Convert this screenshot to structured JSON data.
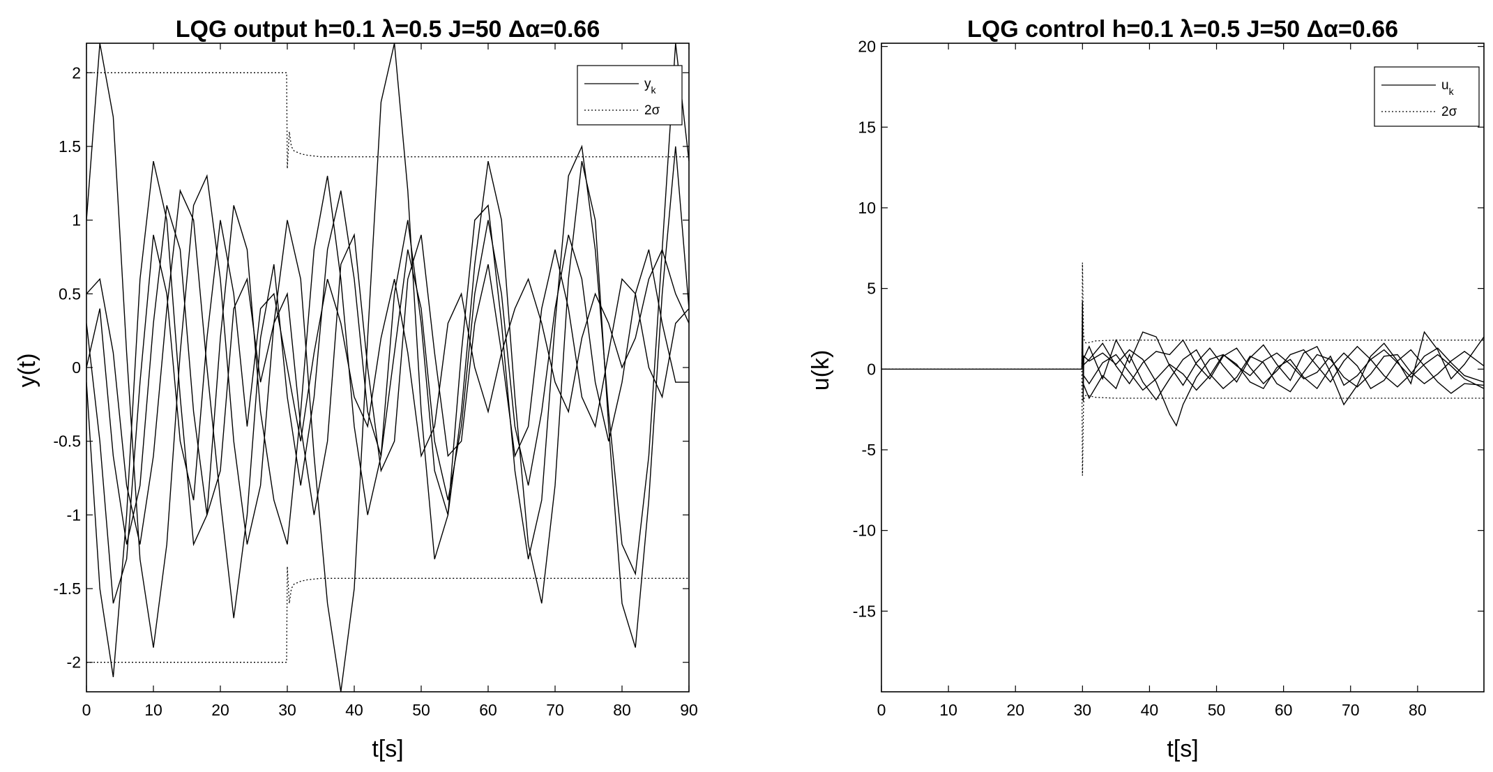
{
  "chart_data": [
    {
      "type": "line",
      "title": "LQG   output h=0.1   λ=0.5   J=50   Δα=0.66",
      "xlabel": "t[s]",
      "ylabel": "y(t)",
      "xlim": [
        0,
        90
      ],
      "ylim": [
        -2.2,
        2.2
      ],
      "xticks": [
        "0",
        "10",
        "20",
        "30",
        "40",
        "50",
        "60",
        "70",
        "80",
        "90"
      ],
      "yticks": [
        "2",
        "1.5",
        "1",
        "0.5",
        "0",
        "-0.5",
        "-1",
        "-1.5",
        "-2"
      ],
      "grid": false,
      "legend_position": "top-right",
      "legend": [
        {
          "label": "y",
          "sub": "k",
          "style": "solid"
        },
        {
          "label": "2σ",
          "sub": "",
          "style": "dotted"
        }
      ],
      "series": [
        {
          "style": "solid",
          "x": [
            0,
            2,
            4,
            6,
            8,
            10,
            12,
            14,
            16,
            18,
            20,
            22,
            24,
            26,
            28,
            30,
            32,
            34,
            36,
            38,
            40,
            42,
            44,
            46,
            48,
            50,
            52,
            54,
            56,
            58,
            60,
            62,
            64,
            66,
            68,
            70,
            72,
            74,
            76,
            78,
            80,
            82,
            84,
            86,
            88,
            90
          ],
          "y": [
            1.0,
            2.2,
            1.7,
            0.1,
            -1.3,
            -1.9,
            -1.2,
            0.1,
            1.1,
            1.3,
            0.6,
            -0.5,
            -1.2,
            -0.8,
            0.3,
            1.0,
            0.6,
            -0.6,
            -1.6,
            -2.2,
            -1.5,
            0.2,
            1.8,
            2.2,
            1.2,
            -0.3,
            -1.3,
            -1.0,
            0.1,
            1.0,
            1.1,
            0.3,
            -0.7,
            -1.3,
            -0.9,
            0.3,
            1.3,
            1.5,
            0.8,
            -0.3,
            -1.2,
            -1.4,
            -0.6,
            0.8,
            2.2,
            1.4
          ]
        },
        {
          "style": "solid",
          "x": [
            0,
            2,
            4,
            6,
            8,
            10,
            12,
            14,
            16,
            18,
            20,
            22,
            24,
            26,
            28,
            30,
            32,
            34,
            36,
            38,
            40,
            42,
            44,
            46,
            48,
            50,
            52,
            54,
            56,
            58,
            60,
            62,
            64,
            66,
            68,
            70,
            72,
            74,
            76,
            78,
            80,
            82,
            84,
            86,
            88,
            90
          ],
          "y": [
            -0.1,
            -1.5,
            -2.1,
            -1.0,
            0.6,
            1.4,
            1.0,
            -0.2,
            -1.2,
            -1.0,
            0.2,
            1.1,
            0.8,
            -0.3,
            -0.9,
            -1.2,
            -0.3,
            0.8,
            1.3,
            0.6,
            -0.4,
            -1.0,
            -0.6,
            0.5,
            1.0,
            0.3,
            -0.7,
            -1.0,
            -0.3,
            0.7,
            1.4,
            1.0,
            -0.2,
            -1.2,
            -1.6,
            -0.8,
            0.6,
            1.4,
            1.0,
            -0.4,
            -1.6,
            -1.9,
            -0.9,
            0.5,
            1.5,
            0.4
          ]
        },
        {
          "style": "solid",
          "x": [
            0,
            2,
            4,
            6,
            8,
            10,
            12,
            14,
            16,
            18,
            20,
            22,
            24,
            26,
            28,
            30,
            32,
            34,
            36,
            38,
            40,
            42,
            44,
            46,
            48,
            50,
            52,
            54,
            56,
            58,
            60,
            62,
            64,
            66,
            68,
            70,
            72,
            74,
            76,
            78,
            80,
            82,
            84,
            86,
            88,
            90
          ],
          "y": [
            0.5,
            0.6,
            0.1,
            -0.8,
            -1.2,
            -0.6,
            0.4,
            1.2,
            1.0,
            0.0,
            -0.9,
            -1.7,
            -1.0,
            0.2,
            0.7,
            -0.2,
            -0.8,
            -0.2,
            0.8,
            1.2,
            0.6,
            -0.3,
            -0.6,
            0.1,
            0.8,
            0.4,
            -0.5,
            -0.9,
            -0.4,
            0.5,
            1.0,
            0.5,
            -0.4,
            -0.8,
            -0.3,
            0.4,
            0.9,
            0.6,
            -0.1,
            -0.5,
            -0.1,
            0.5,
            0.8,
            0.3,
            -0.1,
            -0.1
          ]
        },
        {
          "style": "solid",
          "x": [
            0,
            2,
            4,
            6,
            8,
            10,
            12,
            14,
            16,
            18,
            20,
            22,
            24,
            26,
            28,
            30,
            32,
            34,
            36,
            38,
            40,
            42,
            44,
            46,
            48,
            50,
            52,
            54,
            56,
            58,
            60,
            62,
            64,
            66,
            68,
            70,
            72,
            74,
            76,
            78,
            80,
            82,
            84,
            86,
            88,
            90
          ],
          "y": [
            0.0,
            0.4,
            -0.6,
            -1.2,
            -0.8,
            0.3,
            1.1,
            0.8,
            -0.3,
            -1.0,
            -0.7,
            0.4,
            0.6,
            -0.1,
            0.3,
            0.5,
            -0.4,
            -1.0,
            -0.5,
            0.7,
            0.9,
            0.0,
            -0.7,
            -0.5,
            0.6,
            0.9,
            0.1,
            -0.6,
            -0.5,
            0.3,
            0.7,
            0.1,
            -0.6,
            -0.4,
            0.4,
            0.8,
            0.4,
            -0.2,
            -0.4,
            0.1,
            0.6,
            0.5,
            0.0,
            -0.2,
            0.3,
            0.4
          ]
        },
        {
          "style": "solid",
          "x": [
            0,
            2,
            4,
            6,
            8,
            10,
            12,
            14,
            16,
            18,
            20,
            22,
            24,
            26,
            28,
            30,
            32,
            34,
            36,
            38,
            40,
            42,
            44,
            46,
            48,
            50,
            52,
            54,
            56,
            58,
            60,
            62,
            64,
            66,
            68,
            70,
            72,
            74,
            76,
            78,
            80,
            82,
            84,
            86,
            88,
            90
          ],
          "y": [
            0.3,
            -0.5,
            -1.6,
            -1.3,
            -0.1,
            0.9,
            0.5,
            -0.5,
            -0.9,
            0.2,
            1.0,
            0.5,
            -0.4,
            0.4,
            0.5,
            0.0,
            -0.5,
            0.1,
            0.6,
            0.3,
            -0.2,
            -0.4,
            0.2,
            0.6,
            0.1,
            -0.6,
            -0.4,
            0.3,
            0.5,
            0.0,
            -0.3,
            0.1,
            0.4,
            0.6,
            0.3,
            -0.1,
            -0.3,
            0.2,
            0.5,
            0.3,
            0.0,
            0.2,
            0.6,
            0.8,
            0.5,
            0.3
          ]
        },
        {
          "style": "dotted",
          "x": [
            0,
            29.9,
            30,
            30.3,
            30.6,
            31,
            32,
            33,
            35,
            40,
            50,
            60,
            70,
            80,
            90
          ],
          "y": [
            2.0,
            2.0,
            1.35,
            1.6,
            1.5,
            1.47,
            1.45,
            1.44,
            1.43,
            1.43,
            1.43,
            1.43,
            1.43,
            1.43,
            1.43
          ]
        },
        {
          "style": "dotted",
          "x": [
            0,
            29.9,
            30,
            30.3,
            30.6,
            31,
            32,
            33,
            35,
            40,
            50,
            60,
            70,
            80,
            90
          ],
          "y": [
            -2.0,
            -2.0,
            -1.35,
            -1.6,
            -1.5,
            -1.47,
            -1.45,
            -1.44,
            -1.43,
            -1.43,
            -1.43,
            -1.43,
            -1.43,
            -1.43,
            -1.43
          ]
        }
      ]
    },
    {
      "type": "line",
      "title": "LQG   control h=0.1   λ=0.5   J=50   Δα=0.66",
      "xlabel": "t[s]",
      "ylabel": "u(k)",
      "xlim": [
        0,
        89.9
      ],
      "ylim": [
        -20,
        20.2
      ],
      "xticks": [
        "0",
        "10",
        "20",
        "30",
        "40",
        "50",
        "60",
        "70",
        "80"
      ],
      "yticks": [
        "20",
        "15",
        "10",
        "5",
        "0",
        "-5",
        "-10",
        "-15"
      ],
      "grid": false,
      "legend_position": "top-right",
      "legend": [
        {
          "label": "u",
          "sub": "k",
          "style": "solid"
        },
        {
          "label": "2σ",
          "sub": "",
          "style": "dotted"
        }
      ],
      "series": [
        {
          "style": "solid",
          "x": [
            0,
            29.9,
            30,
            30.1,
            30.2,
            31,
            33,
            35,
            37,
            39,
            41,
            43,
            44,
            45,
            47,
            49,
            51,
            53,
            55,
            57,
            59,
            61,
            63,
            65,
            67,
            69,
            71,
            73,
            75,
            77,
            79,
            81,
            83,
            85,
            87,
            89.9
          ],
          "y": [
            0,
            0,
            4.2,
            -2.0,
            0.8,
            0.5,
            1.0,
            0.3,
            1.2,
            0.6,
            -0.8,
            -2.8,
            -3.5,
            -2.2,
            -0.5,
            0.6,
            0.9,
            0.2,
            -0.4,
            0.5,
            1.0,
            0.3,
            -0.6,
            -0.2,
            0.8,
            -1.0,
            -0.4,
            0.6,
            1.2,
            0.4,
            -0.5,
            0.3,
            0.9,
            0.2,
            -0.6,
            -1.2
          ]
        },
        {
          "style": "solid",
          "x": [
            30,
            31,
            33,
            35,
            37,
            39,
            41,
            43,
            45,
            47,
            49,
            51,
            53,
            55,
            57,
            59,
            61,
            63,
            65,
            67,
            69,
            71,
            73,
            75,
            77,
            79,
            81,
            83,
            85,
            87,
            89.9
          ],
          "y": [
            0.5,
            1.4,
            -0.6,
            1.8,
            0.4,
            2.3,
            2.0,
            0.2,
            -1.0,
            0.4,
            1.3,
            0.2,
            -0.8,
            0.7,
            1.5,
            0.3,
            -0.7,
            1.0,
            1.4,
            -0.2,
            -2.2,
            -1.0,
            0.8,
            1.6,
            0.5,
            -0.9,
            2.3,
            1.2,
            -0.6,
            0.3,
            2.0
          ]
        },
        {
          "style": "solid",
          "x": [
            30,
            31,
            33,
            35,
            37,
            39,
            41,
            43,
            45,
            47,
            49,
            51,
            53,
            55,
            57,
            59,
            61,
            63,
            65,
            67,
            69,
            71,
            73,
            75,
            77,
            79,
            81,
            83,
            85,
            87,
            89.9
          ],
          "y": [
            -0.8,
            -1.8,
            -0.4,
            -1.2,
            0.9,
            -0.8,
            -1.9,
            -0.6,
            0.6,
            1.2,
            -0.3,
            -1.2,
            -0.5,
            0.8,
            0.4,
            -0.9,
            -1.4,
            -0.2,
            0.9,
            0.6,
            -0.5,
            -1.1,
            -0.3,
            0.8,
            0.9,
            -0.2,
            -0.9,
            -0.3,
            0.5,
            1.1,
            0.2
          ]
        },
        {
          "style": "solid",
          "x": [
            30,
            31,
            33,
            35,
            37,
            39,
            41,
            43,
            45,
            47,
            49,
            51,
            53,
            55,
            57,
            59,
            61,
            63,
            65,
            67,
            69,
            71,
            73,
            75,
            77,
            79,
            81,
            83,
            85,
            87,
            89.9
          ],
          "y": [
            0.2,
            0.6,
            1.6,
            0.2,
            -0.9,
            0.4,
            1.1,
            0.9,
            1.8,
            0.3,
            -0.6,
            0.8,
            1.3,
            0.1,
            -0.9,
            -0.1,
            0.9,
            1.2,
            0.2,
            -0.8,
            0.5,
            1.4,
            0.6,
            -0.4,
            -1.1,
            -0.3,
            0.8,
            1.3,
            0.4,
            -0.4,
            -0.8
          ]
        },
        {
          "style": "solid",
          "x": [
            30,
            31,
            33,
            35,
            37,
            39,
            41,
            43,
            45,
            47,
            49,
            51,
            53,
            55,
            57,
            59,
            61,
            63,
            65,
            67,
            69,
            71,
            73,
            75,
            77,
            79,
            81,
            83,
            85,
            87,
            89.9
          ],
          "y": [
            -0.3,
            -0.9,
            0.4,
            0.9,
            -0.2,
            -1.3,
            -0.6,
            0.3,
            -0.3,
            -1.3,
            -0.4,
            0.9,
            0.3,
            -0.8,
            -1.2,
            0.1,
            0.6,
            -0.5,
            -1.2,
            0.1,
            1.0,
            0.2,
            -1.2,
            -0.7,
            0.5,
            1.2,
            0.2,
            -0.8,
            -1.5,
            -0.9,
            -1.0
          ]
        },
        {
          "style": "dotted",
          "x": [
            0,
            29.9,
            30,
            30.15,
            30.3,
            30.6,
            31,
            32,
            35,
            40,
            50,
            60,
            70,
            80,
            89.9
          ],
          "y": [
            0,
            0,
            6.6,
            2.2,
            1.7,
            1.6,
            1.65,
            1.75,
            1.8,
            1.8,
            1.8,
            1.8,
            1.8,
            1.8,
            1.8
          ]
        },
        {
          "style": "dotted",
          "x": [
            0,
            29.9,
            30,
            30.15,
            30.3,
            30.6,
            31,
            32,
            35,
            40,
            50,
            60,
            70,
            80,
            89.9
          ],
          "y": [
            0,
            0,
            -6.6,
            -2.2,
            -1.7,
            -1.6,
            -1.65,
            -1.75,
            -1.8,
            -1.8,
            -1.8,
            -1.8,
            -1.8,
            -1.8,
            -1.8
          ]
        }
      ]
    }
  ]
}
